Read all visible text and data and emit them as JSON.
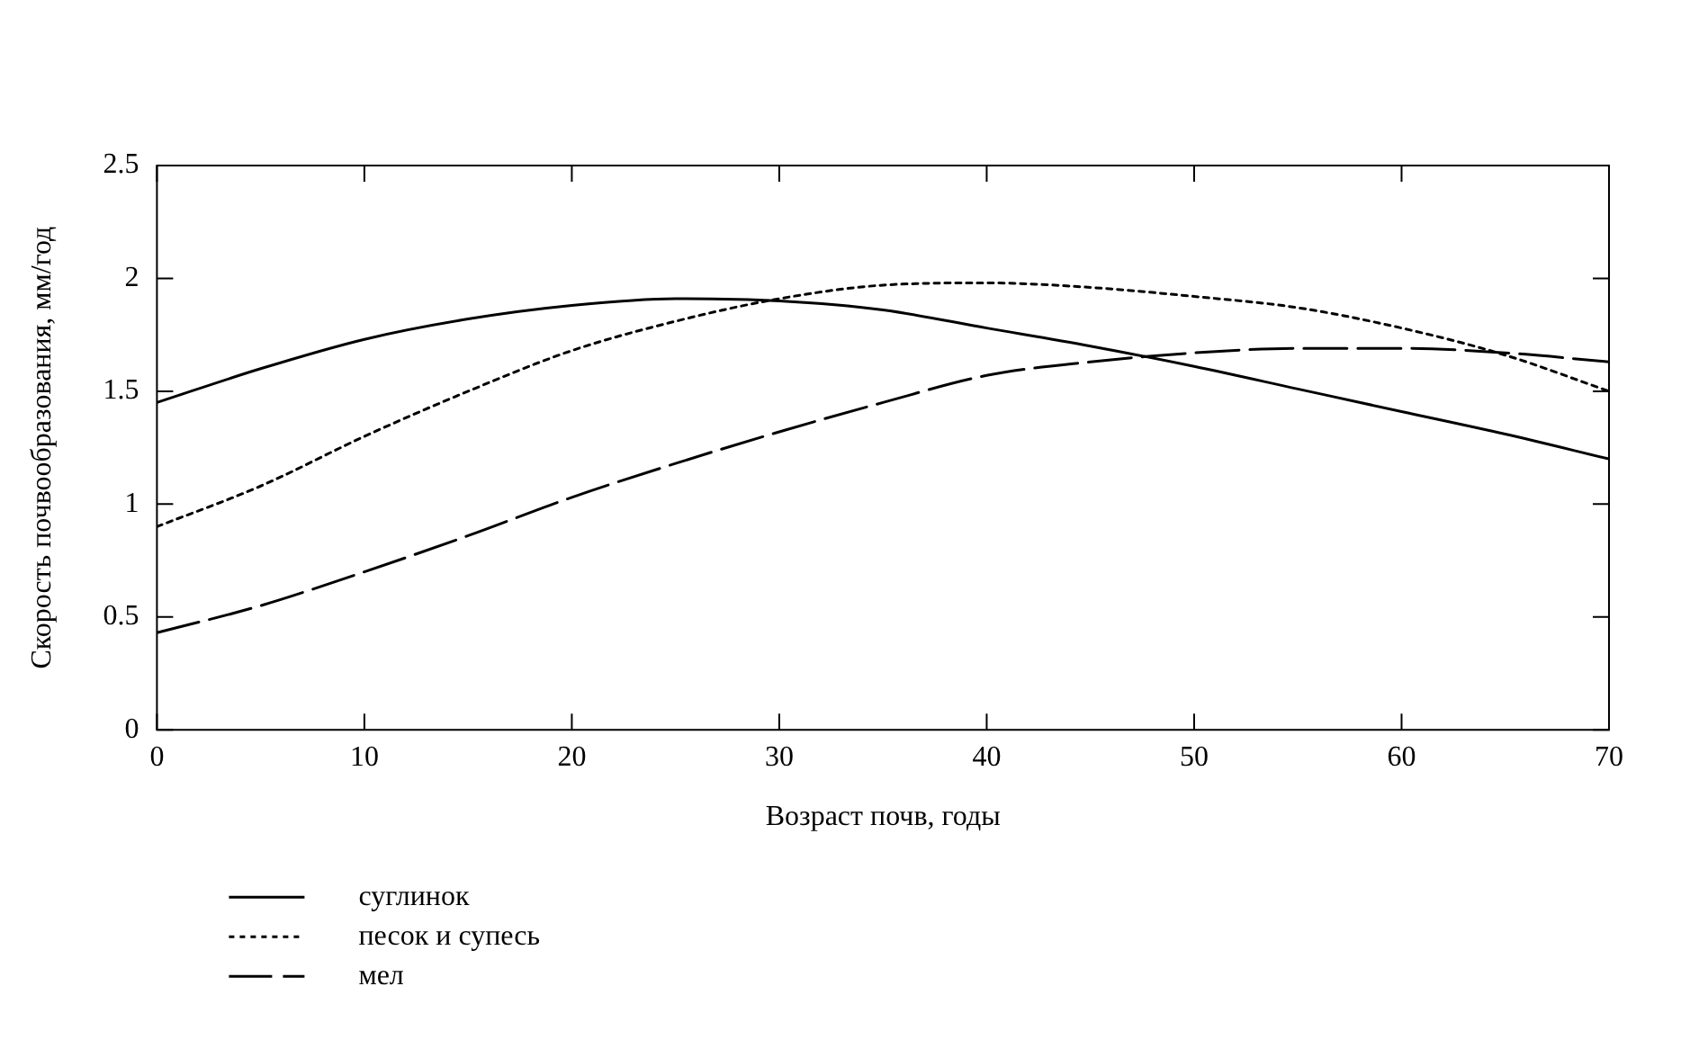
{
  "chart_data": {
    "type": "line",
    "xlabel": "Возраст почв, годы",
    "ylabel": "Скорость почвообразования, мм/год",
    "x": [
      0,
      5,
      10,
      15,
      20,
      25,
      30,
      35,
      40,
      45,
      50,
      55,
      60,
      65,
      70
    ],
    "series": [
      {
        "name": "суглинок",
        "color": "#000000",
        "line_style": "solid",
        "values": [
          1.45,
          1.6,
          1.73,
          1.82,
          1.88,
          1.91,
          1.9,
          1.86,
          1.78,
          1.7,
          1.61,
          1.51,
          1.41,
          1.31,
          1.2
        ]
      },
      {
        "name": "песок и супесь",
        "color": "#000000",
        "line_style": "dotted",
        "values": [
          0.9,
          1.08,
          1.3,
          1.5,
          1.68,
          1.81,
          1.91,
          1.97,
          1.98,
          1.96,
          1.92,
          1.87,
          1.78,
          1.66,
          1.5
        ]
      },
      {
        "name": "мел",
        "color": "#000000",
        "line_style": "dashed",
        "values": [
          0.43,
          0.55,
          0.7,
          0.86,
          1.03,
          1.18,
          1.32,
          1.45,
          1.57,
          1.63,
          1.67,
          1.69,
          1.69,
          1.67,
          1.63
        ]
      }
    ],
    "xlim": [
      0,
      70
    ],
    "xticks": [
      0,
      10,
      20,
      30,
      40,
      50,
      60,
      70
    ],
    "ylim": [
      0,
      2.5
    ],
    "yticks": [
      0,
      0.5,
      1,
      1.5,
      2,
      2.5
    ],
    "grid": false,
    "legend": "bottom left",
    "marker": "none"
  }
}
